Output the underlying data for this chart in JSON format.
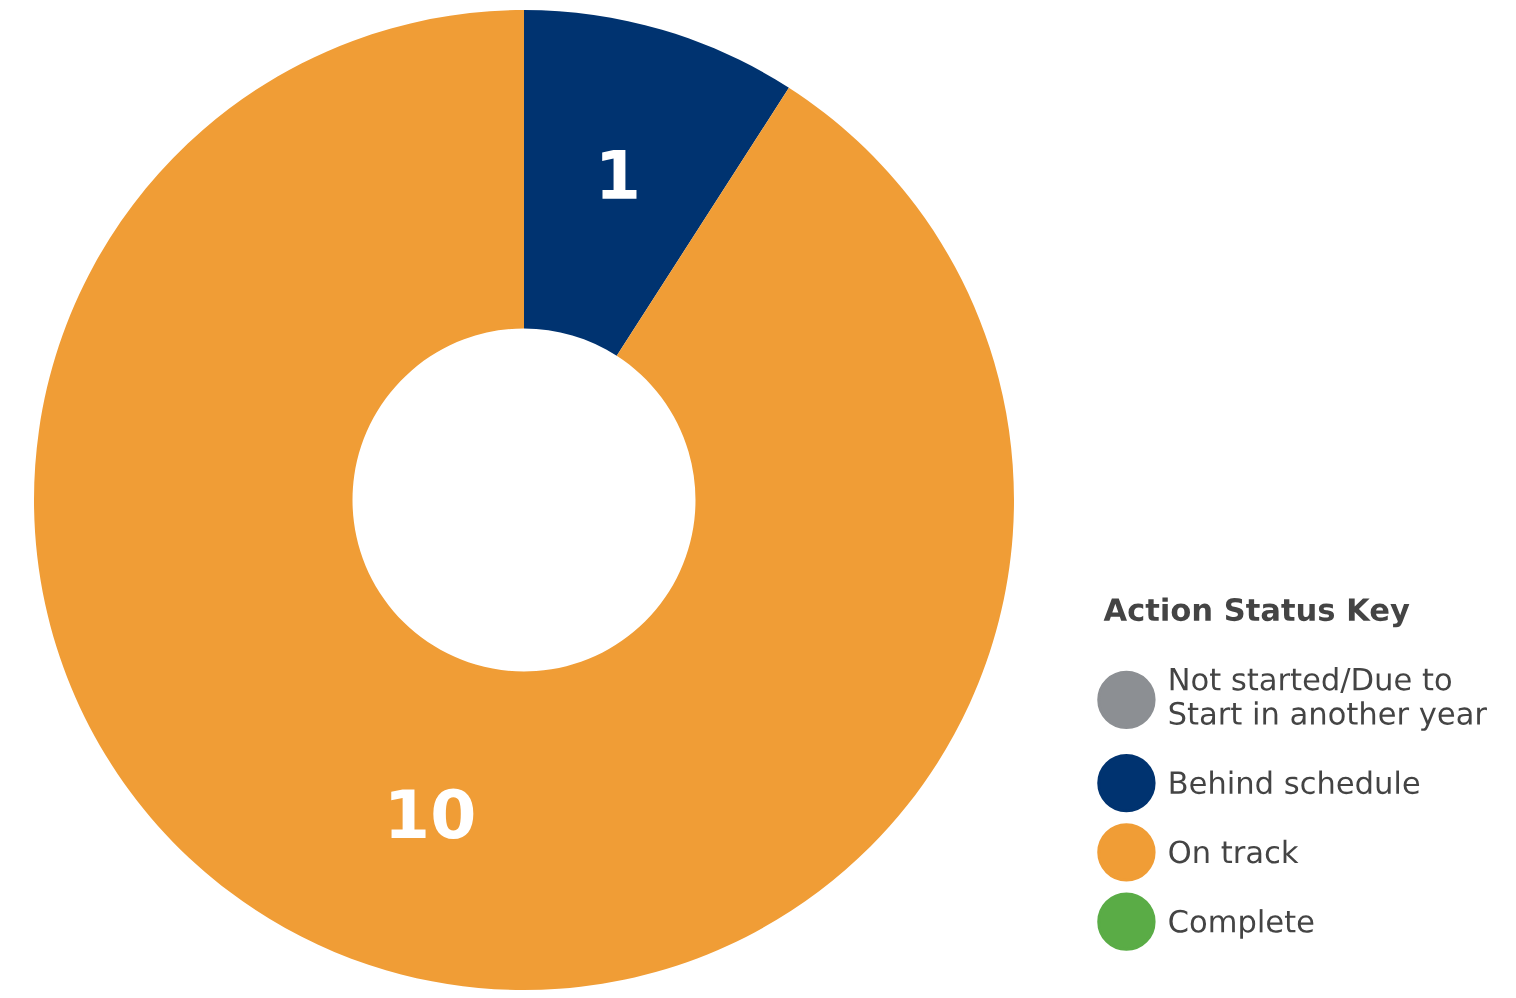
{
  "chart_data": {
    "type": "donut",
    "categories": [
      "Not started/Due to\nStart in another year",
      "Behind schedule",
      "On track",
      "Complete"
    ],
    "values": [
      0,
      1,
      10,
      0
    ],
    "colors": [
      "#8c8f93",
      "#003370",
      "#f09d36",
      "#5aac46"
    ],
    "value_labels": [
      null,
      "1",
      "10",
      null
    ],
    "legend_title": "Action Status Key",
    "legend": "right"
  }
}
